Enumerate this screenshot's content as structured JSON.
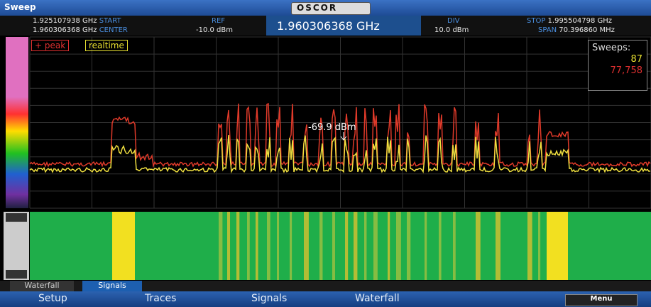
{
  "window_title": "Sweep",
  "logo": "OSCOR",
  "header": {
    "start_value": "1.925107938 GHz",
    "start_label": "START",
    "center_value": "1.960306368 GHz",
    "center_label": "CENTER",
    "ref_label": "REF",
    "ref_value": "-10.0 dBm",
    "center_big": "1.960306368 GHz",
    "div_label": "DIV",
    "div_value": "10.0 dBm",
    "stop_label": "STOP",
    "stop_value": "1.995504798 GHz",
    "span_label": "SPAN",
    "span_value": "70.396860 MHz"
  },
  "legend": {
    "peak": "+ peak",
    "realtime": "realtime"
  },
  "sweeps": {
    "label": "Sweeps:",
    "count": "87",
    "total": "77,758"
  },
  "marker": "-69.9 dBm",
  "tabs": [
    "Waterfall",
    "Signals"
  ],
  "menu": [
    "Setup",
    "Traces",
    "Signals",
    "Waterfall"
  ],
  "menu_button": "Menu"
}
